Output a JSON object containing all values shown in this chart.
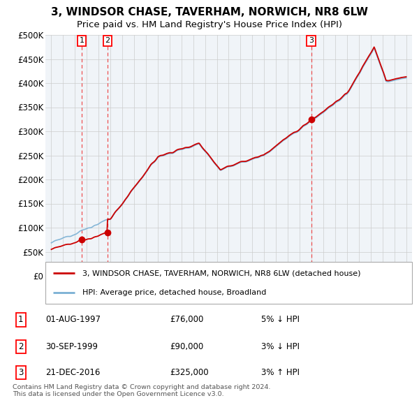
{
  "title": "3, WINDSOR CHASE, TAVERHAM, NORWICH, NR8 6LW",
  "subtitle": "Price paid vs. HM Land Registry's House Price Index (HPI)",
  "legend_line1": "3, WINDSOR CHASE, TAVERHAM, NORWICH, NR8 6LW (detached house)",
  "legend_line2": "HPI: Average price, detached house, Broadland",
  "footer1": "Contains HM Land Registry data © Crown copyright and database right 2024.",
  "footer2": "This data is licensed under the Open Government Licence v3.0.",
  "transactions": [
    {
      "label": "1",
      "date": "01-AUG-1997",
      "price": 76000,
      "pct": "5% ↓ HPI",
      "year": 1997.58
    },
    {
      "label": "2",
      "date": "30-SEP-1999",
      "price": 90000,
      "pct": "3% ↓ HPI",
      "year": 1999.75
    },
    {
      "label": "3",
      "date": "21-DEC-2016",
      "price": 325000,
      "pct": "3% ↑ HPI",
      "year": 2016.97
    }
  ],
  "table_rows": [
    [
      "1",
      "01-AUG-1997",
      "£76,000",
      "5% ↓ HPI"
    ],
    [
      "2",
      "30-SEP-1999",
      "£90,000",
      "3% ↓ HPI"
    ],
    [
      "3",
      "21-DEC-2016",
      "£325,000",
      "3% ↑ HPI"
    ]
  ],
  "xlim": [
    1994.5,
    2025.5
  ],
  "ylim": [
    0,
    500000
  ],
  "yticks": [
    0,
    50000,
    100000,
    150000,
    200000,
    250000,
    300000,
    350000,
    400000,
    450000,
    500000
  ],
  "ytick_labels": [
    "£0",
    "£50K",
    "£100K",
    "£150K",
    "£200K",
    "£250K",
    "£300K",
    "£350K",
    "£400K",
    "£450K",
    "£500K"
  ],
  "hpi_color": "#7ab0d4",
  "price_color": "#cc0000",
  "marker_color": "#cc0000",
  "vline_color": "#ee3333",
  "background_color": "#ffffff",
  "grid_color": "#cccccc",
  "chart_bg": "#f0f4f8"
}
